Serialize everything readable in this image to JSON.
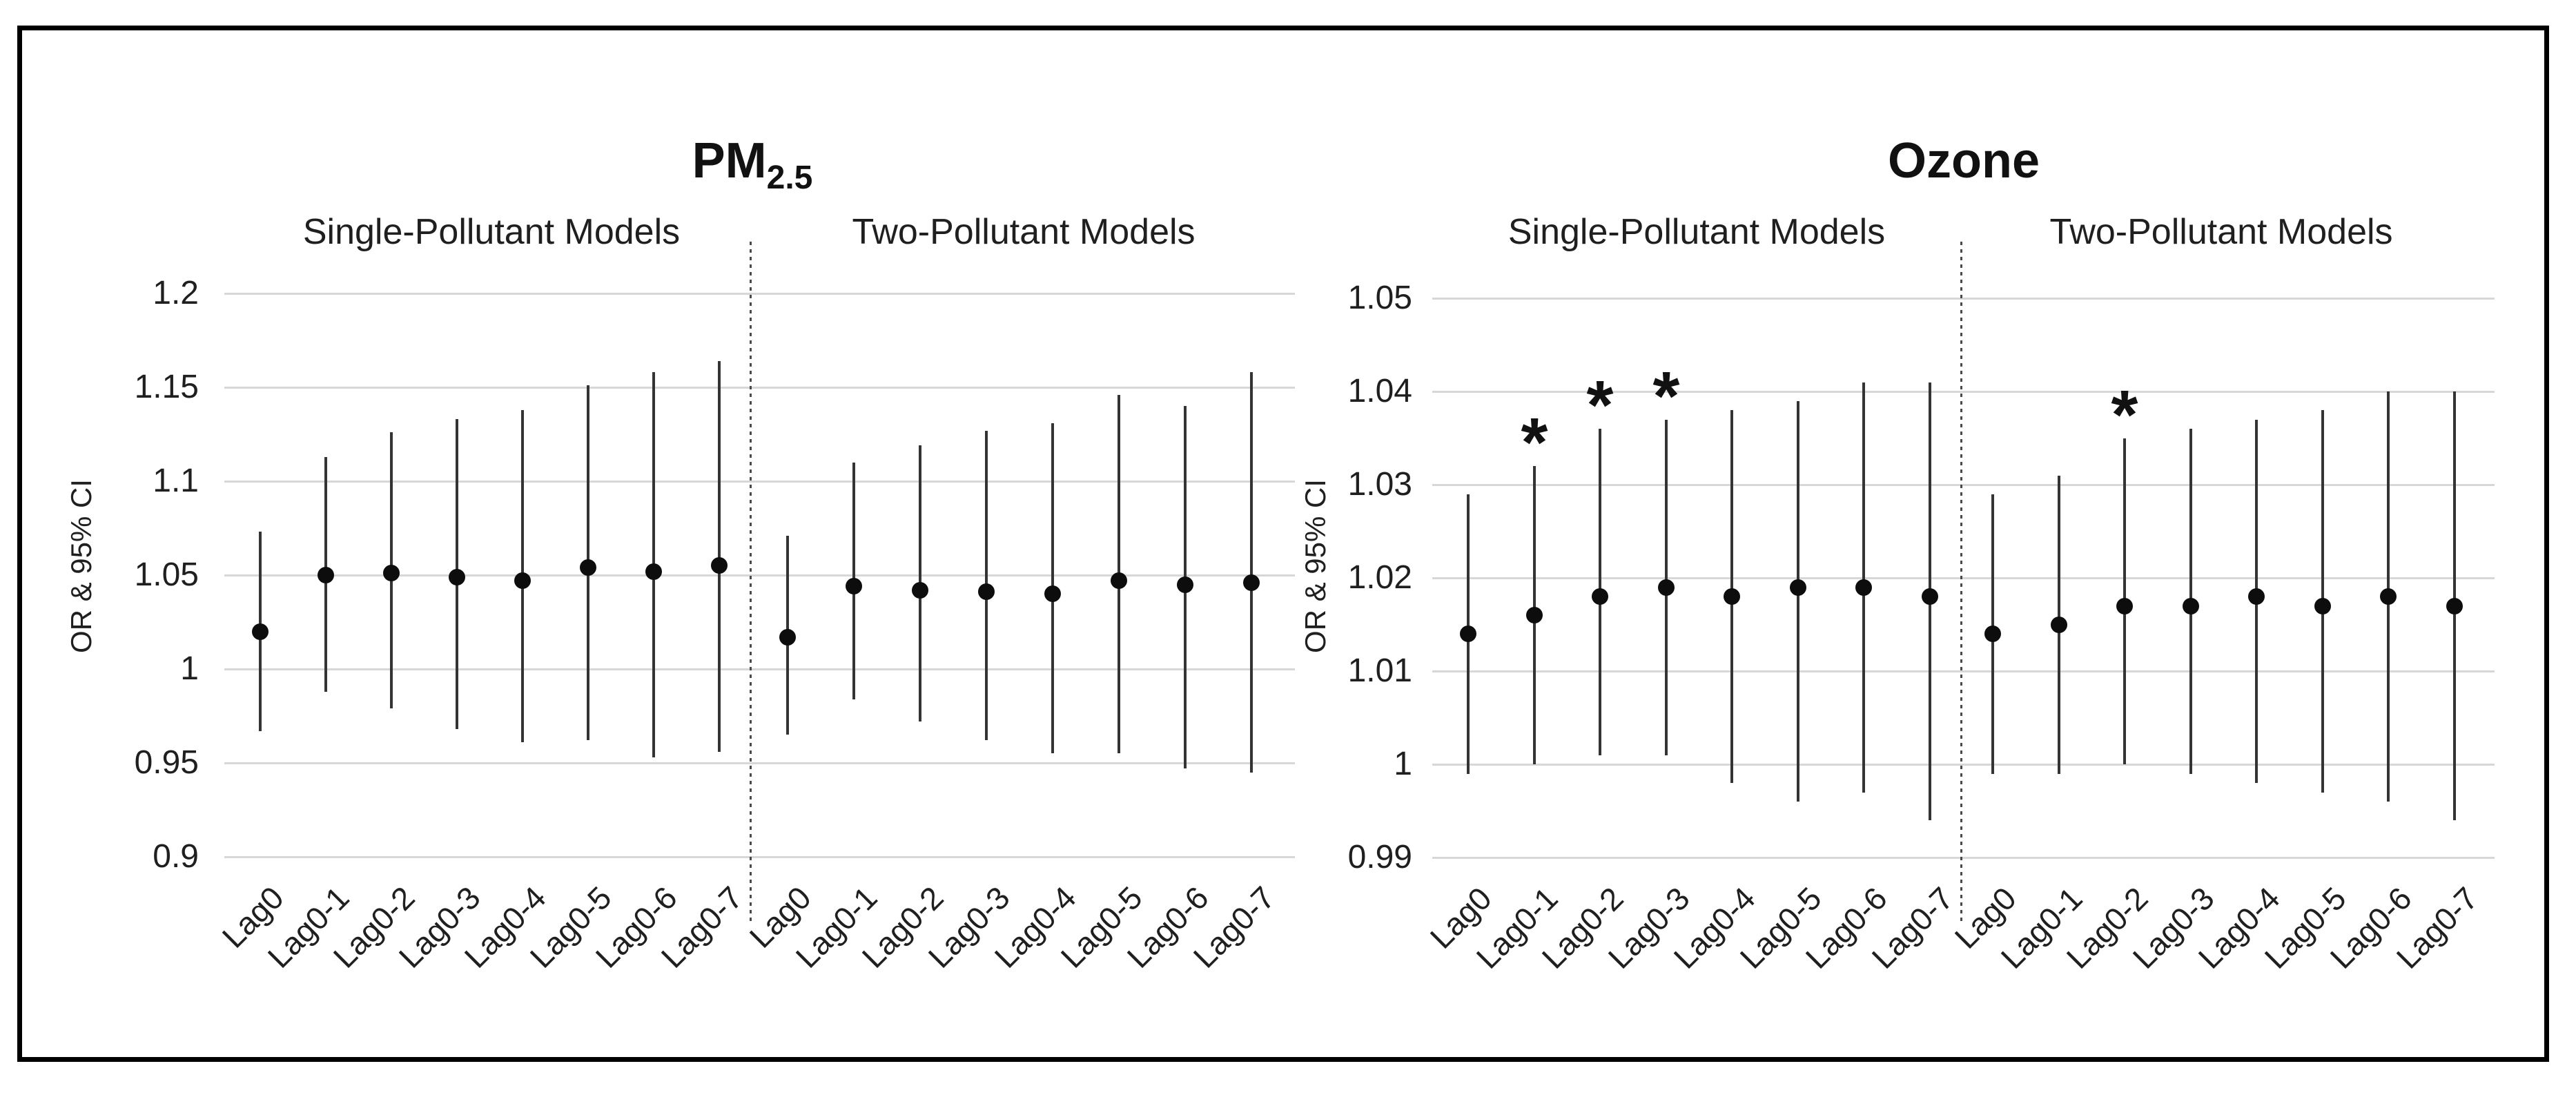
{
  "figure": {
    "background_color": "#ffffff",
    "border_color": "#000000",
    "significance_marker": "*"
  },
  "chart_data": [
    {
      "type": "scatter",
      "title": "PM2.5",
      "title_main": "PM",
      "title_sub": "2.5",
      "ylabel": "OR & 95% CI",
      "xlabel": "",
      "ylim": [
        0.9,
        1.2
      ],
      "ytick_labels": [
        "1.2",
        "1.15",
        "1.1",
        "1.05",
        "1",
        "0.95",
        "0.9"
      ],
      "yticks": [
        1.2,
        1.15,
        1.1,
        1.05,
        1.0,
        0.95,
        0.9
      ],
      "grid": true,
      "legend_position": "none",
      "categories": [
        "Lag0",
        "Lag0-1",
        "Lag0-2",
        "Lag0-3",
        "Lag0-4",
        "Lag0-5",
        "Lag0-6",
        "Lag0-7"
      ],
      "groups": [
        {
          "label": "Single-Pollutant Models",
          "points": [
            {
              "category": "Lag0",
              "or": 1.02,
              "ci_low": 0.967,
              "ci_high": 1.073,
              "significant": false
            },
            {
              "category": "Lag0-1",
              "or": 1.05,
              "ci_low": 0.988,
              "ci_high": 1.113,
              "significant": false
            },
            {
              "category": "Lag0-2",
              "or": 1.051,
              "ci_low": 0.979,
              "ci_high": 1.126,
              "significant": false
            },
            {
              "category": "Lag0-3",
              "or": 1.049,
              "ci_low": 0.968,
              "ci_high": 1.133,
              "significant": false
            },
            {
              "category": "Lag0-4",
              "or": 1.047,
              "ci_low": 0.961,
              "ci_high": 1.138,
              "significant": false
            },
            {
              "category": "Lag0-5",
              "or": 1.054,
              "ci_low": 0.962,
              "ci_high": 1.151,
              "significant": false
            },
            {
              "category": "Lag0-6",
              "or": 1.052,
              "ci_low": 0.953,
              "ci_high": 1.158,
              "significant": false
            },
            {
              "category": "Lag0-7",
              "or": 1.055,
              "ci_low": 0.956,
              "ci_high": 1.164,
              "significant": false
            }
          ]
        },
        {
          "label": "Two-Pollutant Models",
          "points": [
            {
              "category": "Lag0",
              "or": 1.017,
              "ci_low": 0.965,
              "ci_high": 1.071,
              "significant": false
            },
            {
              "category": "Lag0-1",
              "or": 1.044,
              "ci_low": 0.984,
              "ci_high": 1.11,
              "significant": false
            },
            {
              "category": "Lag0-2",
              "or": 1.042,
              "ci_low": 0.972,
              "ci_high": 1.119,
              "significant": false
            },
            {
              "category": "Lag0-3",
              "or": 1.041,
              "ci_low": 0.962,
              "ci_high": 1.127,
              "significant": false
            },
            {
              "category": "Lag0-4",
              "or": 1.04,
              "ci_low": 0.955,
              "ci_high": 1.131,
              "significant": false
            },
            {
              "category": "Lag0-5",
              "or": 1.047,
              "ci_low": 0.955,
              "ci_high": 1.146,
              "significant": false
            },
            {
              "category": "Lag0-6",
              "or": 1.045,
              "ci_low": 0.947,
              "ci_high": 1.14,
              "significant": false
            },
            {
              "category": "Lag0-7",
              "or": 1.046,
              "ci_low": 0.945,
              "ci_high": 1.158,
              "significant": false
            }
          ]
        }
      ]
    },
    {
      "type": "scatter",
      "title": "Ozone",
      "title_main": "Ozone",
      "title_sub": "",
      "ylabel": "OR & 95% CI",
      "xlabel": "",
      "ylim": [
        0.99,
        1.05
      ],
      "ytick_labels": [
        "1.05",
        "1.04",
        "1.03",
        "1.02",
        "1.01",
        "1",
        "0.99"
      ],
      "yticks": [
        1.05,
        1.04,
        1.03,
        1.02,
        1.01,
        1.0,
        0.99
      ],
      "grid": true,
      "legend_position": "none",
      "categories": [
        "Lag0",
        "Lag0-1",
        "Lag0-2",
        "Lag0-3",
        "Lag0-4",
        "Lag0-5",
        "Lag0-6",
        "Lag0-7"
      ],
      "groups": [
        {
          "label": "Single-Pollutant Models",
          "points": [
            {
              "category": "Lag0",
              "or": 1.014,
              "ci_low": 0.999,
              "ci_high": 1.029,
              "significant": false
            },
            {
              "category": "Lag0-1",
              "or": 1.016,
              "ci_low": 1.0,
              "ci_high": 1.032,
              "significant": true
            },
            {
              "category": "Lag0-2",
              "or": 1.018,
              "ci_low": 1.001,
              "ci_high": 1.036,
              "significant": true
            },
            {
              "category": "Lag0-3",
              "or": 1.019,
              "ci_low": 1.001,
              "ci_high": 1.037,
              "significant": true
            },
            {
              "category": "Lag0-4",
              "or": 1.018,
              "ci_low": 0.998,
              "ci_high": 1.038,
              "significant": false
            },
            {
              "category": "Lag0-5",
              "or": 1.019,
              "ci_low": 0.996,
              "ci_high": 1.039,
              "significant": false
            },
            {
              "category": "Lag0-6",
              "or": 1.019,
              "ci_low": 0.997,
              "ci_high": 1.041,
              "significant": false
            },
            {
              "category": "Lag0-7",
              "or": 1.018,
              "ci_low": 0.994,
              "ci_high": 1.041,
              "significant": false
            }
          ]
        },
        {
          "label": "Two-Pollutant Models",
          "points": [
            {
              "category": "Lag0",
              "or": 1.014,
              "ci_low": 0.999,
              "ci_high": 1.029,
              "significant": false
            },
            {
              "category": "Lag0-1",
              "or": 1.015,
              "ci_low": 0.999,
              "ci_high": 1.031,
              "significant": false
            },
            {
              "category": "Lag0-2",
              "or": 1.017,
              "ci_low": 1.0,
              "ci_high": 1.035,
              "significant": true
            },
            {
              "category": "Lag0-3",
              "or": 1.017,
              "ci_low": 0.999,
              "ci_high": 1.036,
              "significant": false
            },
            {
              "category": "Lag0-4",
              "or": 1.018,
              "ci_low": 0.998,
              "ci_high": 1.037,
              "significant": false
            },
            {
              "category": "Lag0-5",
              "or": 1.017,
              "ci_low": 0.997,
              "ci_high": 1.038,
              "significant": false
            },
            {
              "category": "Lag0-6",
              "or": 1.018,
              "ci_low": 0.996,
              "ci_high": 1.04,
              "significant": false
            },
            {
              "category": "Lag0-7",
              "or": 1.017,
              "ci_low": 0.994,
              "ci_high": 1.04,
              "significant": false
            }
          ]
        }
      ]
    }
  ]
}
